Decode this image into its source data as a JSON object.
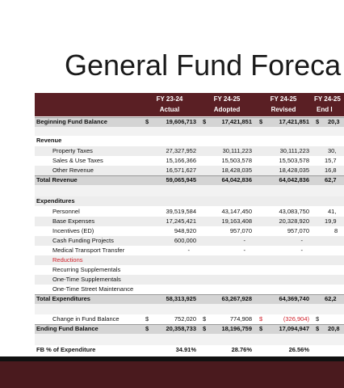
{
  "header": {
    "title": "General Fund Foreca"
  },
  "table": {
    "columns": [
      {
        "line1": "FY 23-24",
        "line2": "Actual"
      },
      {
        "line1": "FY 24-25",
        "line2": "Adopted"
      },
      {
        "line1": "FY 24-25",
        "line2": "Revised"
      },
      {
        "line1": "FY 24-25",
        "line2": "End I"
      }
    ],
    "rows": [
      {
        "label": "Beginning Fund Balance",
        "values": [
          [
            "$",
            "19,606,713"
          ],
          [
            "$",
            "17,421,851"
          ],
          [
            "$",
            "17,421,851"
          ],
          [
            "$",
            "20,3"
          ]
        ]
      },
      {
        "label": "Revenue"
      },
      {
        "label": "Property Taxes",
        "values": [
          "27,327,952",
          "30,111,223",
          "30,111,223",
          "30,"
        ]
      },
      {
        "label": "Sales & Use Taxes",
        "values": [
          "15,166,366",
          "15,503,578",
          "15,503,578",
          "15,7"
        ]
      },
      {
        "label": "Other Revenue",
        "values": [
          "16,571,627",
          "18,428,035",
          "18,428,035",
          "16,8"
        ]
      },
      {
        "label": "Total Revenue",
        "values": [
          "59,065,945",
          "64,042,836",
          "64,042,836",
          "62,7"
        ]
      },
      {
        "label": "Expenditures"
      },
      {
        "label": "Personnel",
        "values": [
          "39,519,584",
          "43,147,450",
          "43,083,750",
          "41,"
        ]
      },
      {
        "label": "Base Expenses",
        "values": [
          "17,245,421",
          "19,163,408",
          "20,328,920",
          "19,9"
        ]
      },
      {
        "label": "Incentives (ED)",
        "values": [
          "948,920",
          "957,070",
          "957,070",
          "8"
        ]
      },
      {
        "label": "Cash Funding Projects",
        "values": [
          "600,000",
          "-",
          "-"
        ]
      },
      {
        "label": "Medical Transport Transfer",
        "values": [
          "-",
          "-",
          "-"
        ]
      },
      {
        "label": "Reductions"
      },
      {
        "label": "Recurring Supplementals"
      },
      {
        "label": "One-Time Supplementals"
      },
      {
        "label": "One-Time Street Maintenance"
      },
      {
        "label": "Total Expenditures",
        "values": [
          "58,313,925",
          "63,267,928",
          "64,369,740",
          "62,2"
        ]
      },
      {
        "label": "Change in Fund Balance",
        "values": [
          [
            "$",
            "752,020"
          ],
          [
            "$",
            "774,908"
          ],
          [
            "$",
            "(326,904)"
          ],
          [
            "$"
          ]
        ]
      },
      {
        "label": "Ending Fund Balance",
        "values": [
          [
            "$",
            "20,358,733"
          ],
          [
            "$",
            "18,196,759"
          ],
          [
            "$",
            "17,094,947"
          ],
          [
            "$",
            "20,8"
          ]
        ]
      },
      {
        "label": "FB % of Expenditure",
        "values": [
          "34.91%",
          "28.76%",
          "26.56%"
        ]
      }
    ]
  }
}
